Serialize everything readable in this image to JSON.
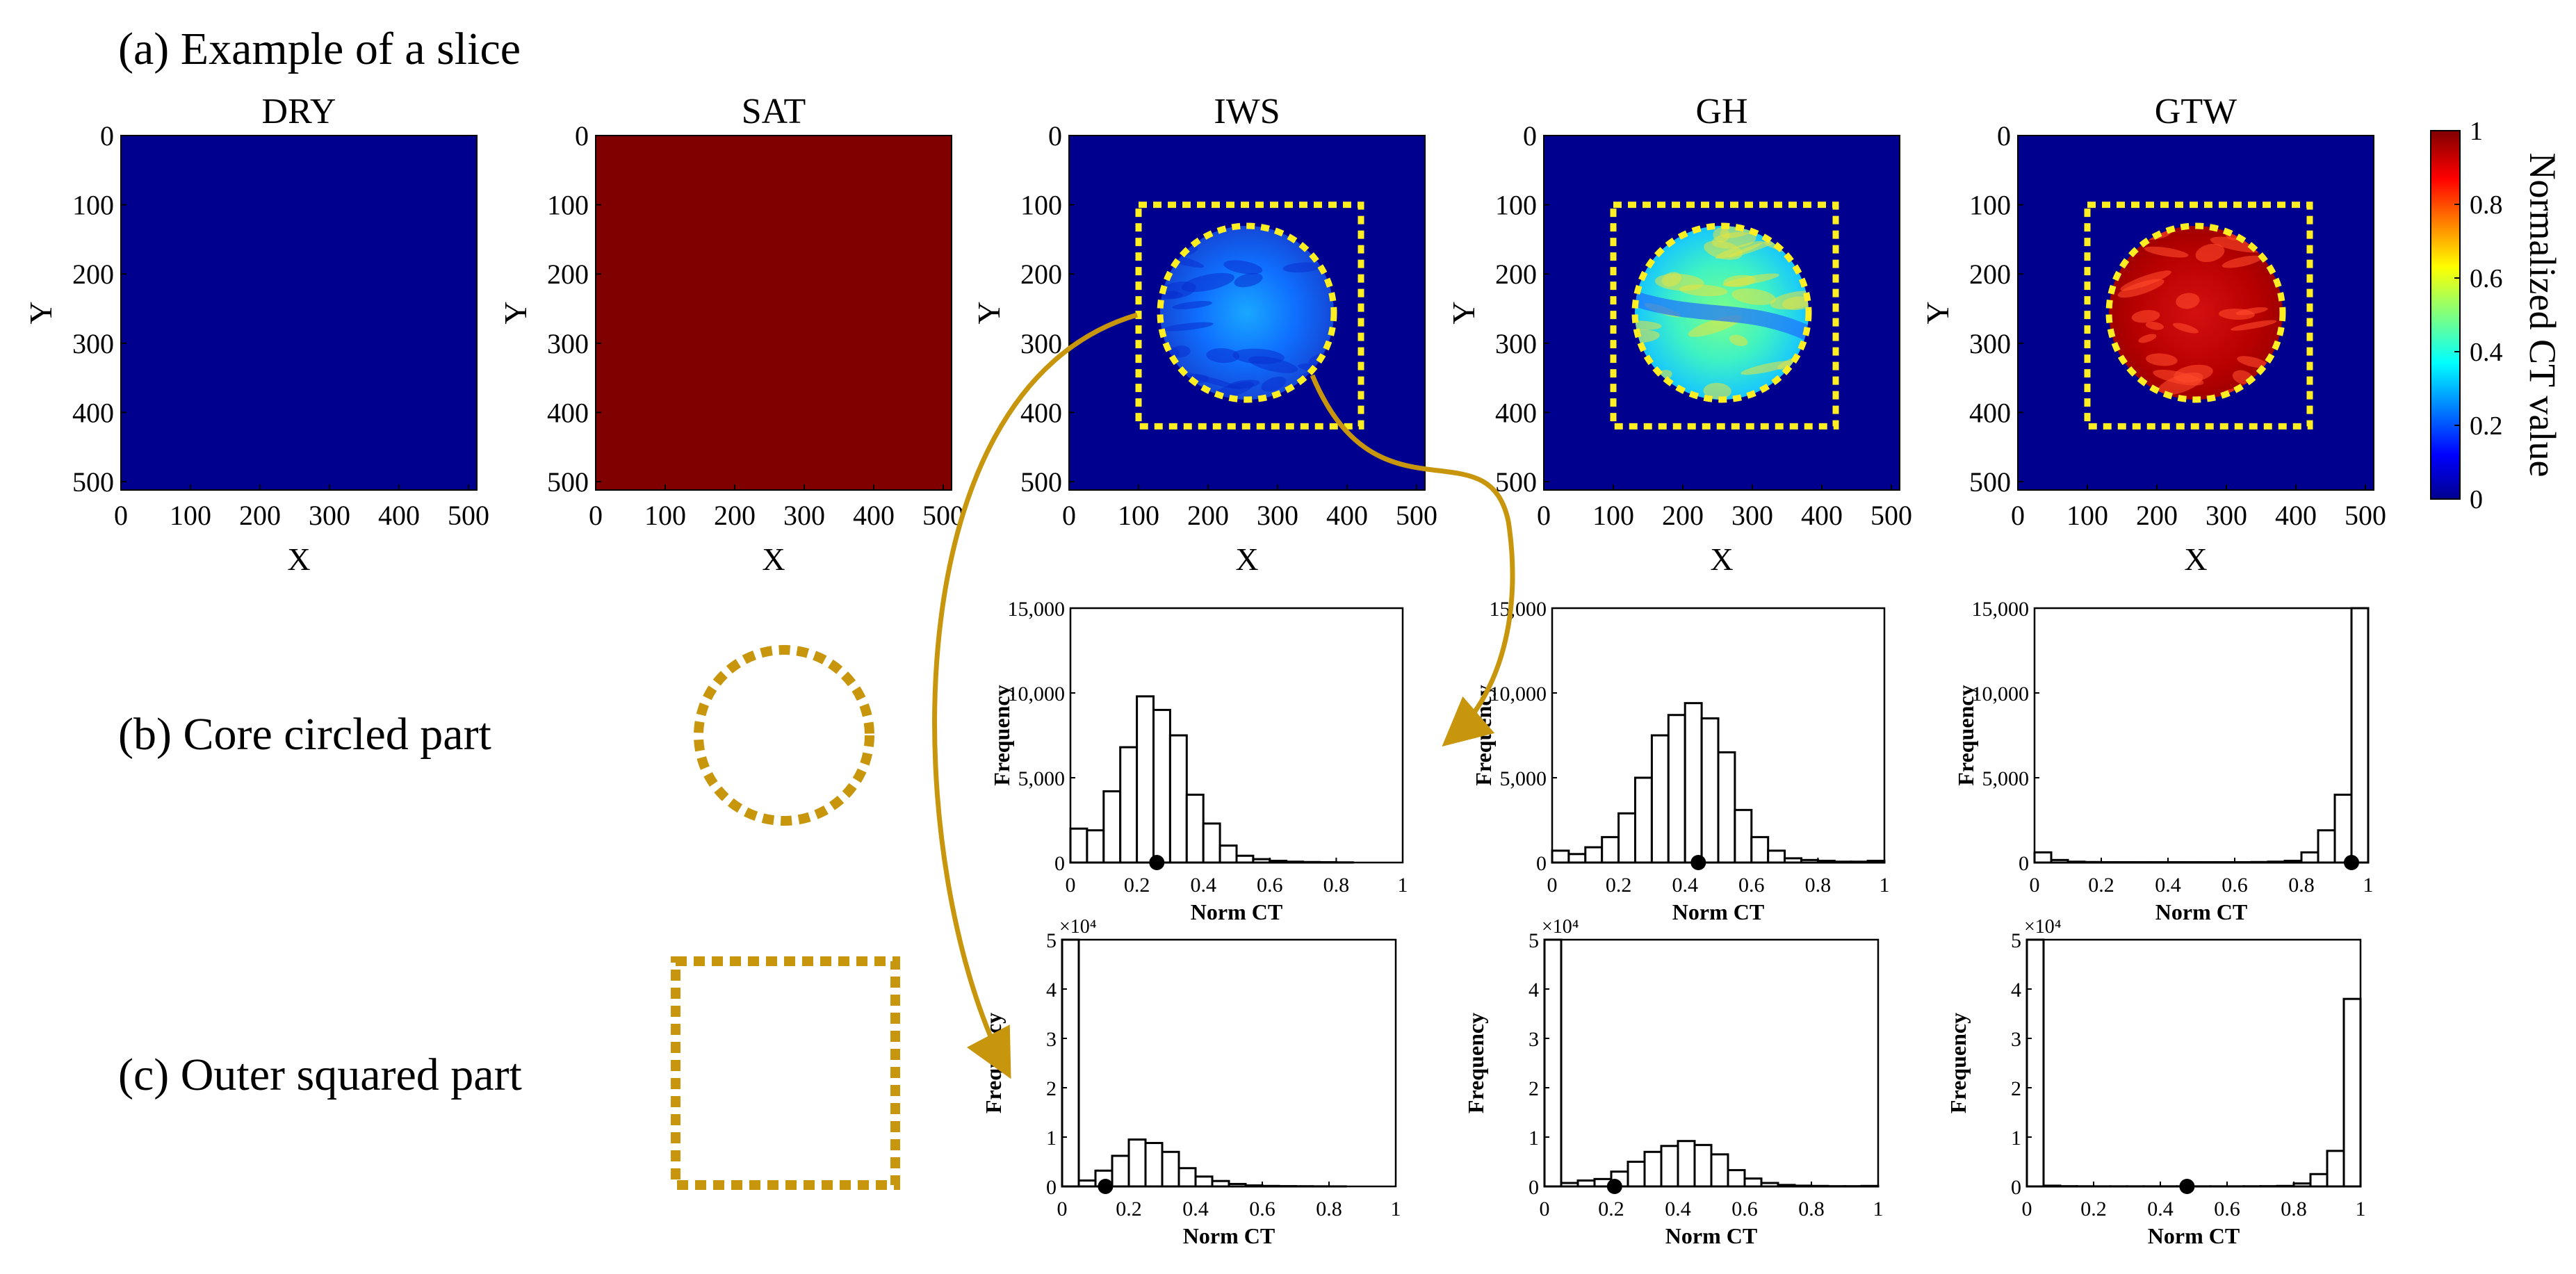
{
  "figure": {
    "row_a_label": "(a) Example of a slice",
    "row_b_label": "(b) Core circled part",
    "row_c_label": "(c) Outer squared part"
  },
  "colors": {
    "jet_dark_blue": "#00008f",
    "jet_dark_red": "#800000",
    "gold": "#c8960c",
    "yellow_dash": "#ffee22"
  },
  "slices": {
    "x_label": "X",
    "y_label": "Y",
    "ticks": [
      "0",
      "100",
      "200",
      "300",
      "400",
      "500"
    ],
    "tick_values": [
      0,
      100,
      200,
      300,
      400,
      500
    ],
    "axis_max": 512,
    "panels": [
      {
        "key": "dry",
        "title": "DRY",
        "fill": "uniform-low"
      },
      {
        "key": "sat",
        "title": "SAT",
        "fill": "uniform-high"
      },
      {
        "key": "iws",
        "title": "IWS",
        "fill": "core-low",
        "core_norm_ct": 0.26
      },
      {
        "key": "gh",
        "title": "GH",
        "fill": "core-mid",
        "core_norm_ct": 0.45
      },
      {
        "key": "gtw",
        "title": "GTW",
        "fill": "core-high",
        "core_norm_ct": 0.95
      }
    ],
    "core_circle": {
      "cx": 256,
      "cy": 256,
      "r": 125
    },
    "outer_square": {
      "x0": 100,
      "y0": 100,
      "x1": 420,
      "y1": 420
    }
  },
  "colorbar": {
    "label": "Normalized CT value",
    "ticks": [
      "0",
      "0.2",
      "0.4",
      "0.6",
      "0.8",
      "1"
    ],
    "tick_values": [
      0,
      0.2,
      0.4,
      0.6,
      0.8,
      1
    ]
  },
  "chart_data": [
    {
      "type": "bar",
      "title": "IWS core circled part",
      "xlabel": "Norm CT",
      "ylabel": "Frequency",
      "xlim": [
        0,
        1
      ],
      "ylim": [
        0,
        15000
      ],
      "bin_width": 0.05,
      "bin_starts": [
        0,
        0.05,
        0.1,
        0.15,
        0.2,
        0.25,
        0.3,
        0.35,
        0.4,
        0.45,
        0.5,
        0.55,
        0.6,
        0.65,
        0.7,
        0.75,
        0.8,
        0.85,
        0.9,
        0.95
      ],
      "values": [
        2000,
        1900,
        4200,
        6800,
        9800,
        9000,
        7500,
        4000,
        2300,
        1000,
        400,
        200,
        100,
        50,
        30,
        20,
        10,
        0,
        0,
        0
      ],
      "mean_marker": 0.26,
      "x_ticks": [
        "0",
        "0.2",
        "0.4",
        "0.6",
        "0.8",
        "1"
      ],
      "x_tick_values": [
        0,
        0.2,
        0.4,
        0.6,
        0.8,
        1
      ],
      "y_ticks": [
        "0",
        "5,000",
        "10,000",
        "15,000"
      ],
      "y_tick_values": [
        0,
        5000,
        10000,
        15000
      ],
      "exponent": ""
    },
    {
      "type": "bar",
      "title": "GH core circled part",
      "xlabel": "Norm CT",
      "ylabel": "Frequency",
      "xlim": [
        0,
        1
      ],
      "ylim": [
        0,
        15000
      ],
      "bin_width": 0.05,
      "bin_starts": [
        0,
        0.05,
        0.1,
        0.15,
        0.2,
        0.25,
        0.3,
        0.35,
        0.4,
        0.45,
        0.5,
        0.55,
        0.6,
        0.65,
        0.7,
        0.75,
        0.8,
        0.85,
        0.9,
        0.95
      ],
      "values": [
        700,
        500,
        900,
        1500,
        2900,
        5000,
        7500,
        8700,
        9400,
        8500,
        6500,
        3100,
        1500,
        700,
        250,
        150,
        100,
        50,
        50,
        100
      ],
      "mean_marker": 0.44,
      "x_ticks": [
        "0",
        "0.2",
        "0.4",
        "0.6",
        "0.8",
        "1"
      ],
      "x_tick_values": [
        0,
        0.2,
        0.4,
        0.6,
        0.8,
        1
      ],
      "y_ticks": [
        "0",
        "5,000",
        "10,000",
        "15,000"
      ],
      "y_tick_values": [
        0,
        5000,
        10000,
        15000
      ],
      "exponent": ""
    },
    {
      "type": "bar",
      "title": "GTW core circled part",
      "xlabel": "Norm CT",
      "ylabel": "Frequency",
      "xlim": [
        0,
        1
      ],
      "ylim": [
        0,
        15000
      ],
      "bin_width": 0.05,
      "bin_starts": [
        0,
        0.05,
        0.1,
        0.15,
        0.2,
        0.25,
        0.3,
        0.35,
        0.4,
        0.45,
        0.5,
        0.55,
        0.6,
        0.65,
        0.7,
        0.75,
        0.8,
        0.85,
        0.9,
        0.95
      ],
      "values": [
        600,
        150,
        50,
        30,
        20,
        20,
        20,
        20,
        20,
        20,
        20,
        20,
        20,
        30,
        50,
        100,
        600,
        1900,
        4000,
        6800
      ],
      "extra_bar": {
        "start": 0.95,
        "value": 15000
      },
      "mean_marker": 0.95,
      "x_ticks": [
        "0",
        "0.2",
        "0.4",
        "0.6",
        "0.8",
        "1"
      ],
      "x_tick_values": [
        0,
        0.2,
        0.4,
        0.6,
        0.8,
        1
      ],
      "y_ticks": [
        "0",
        "5,000",
        "10,000",
        "15,000"
      ],
      "y_tick_values": [
        0,
        5000,
        10000,
        15000
      ],
      "exponent": ""
    },
    {
      "type": "bar",
      "title": "IWS outer squared part",
      "xlabel": "Norm CT",
      "ylabel": "Frequency",
      "xlim": [
        0,
        1
      ],
      "ylim": [
        0,
        50000
      ],
      "bin_width": 0.05,
      "bin_starts": [
        0,
        0.05,
        0.1,
        0.15,
        0.2,
        0.25,
        0.3,
        0.35,
        0.4,
        0.45,
        0.5,
        0.55,
        0.6,
        0.65,
        0.7,
        0.75,
        0.8,
        0.85,
        0.9,
        0.95
      ],
      "values": [
        50000,
        1200,
        3200,
        6200,
        9500,
        8800,
        7000,
        3700,
        2000,
        1100,
        500,
        200,
        100,
        60,
        40,
        20,
        10,
        0,
        0,
        0
      ],
      "mean_marker": 0.13,
      "x_ticks": [
        "0",
        "0.2",
        "0.4",
        "0.6",
        "0.8",
        "1"
      ],
      "x_tick_values": [
        0,
        0.2,
        0.4,
        0.6,
        0.8,
        1
      ],
      "y_ticks": [
        "0",
        "1",
        "2",
        "3",
        "4",
        "5"
      ],
      "y_tick_values": [
        0,
        10000,
        20000,
        30000,
        40000,
        50000
      ],
      "exponent": "×10⁴"
    },
    {
      "type": "bar",
      "title": "GH outer squared part",
      "xlabel": "Norm CT",
      "ylabel": "Frequency",
      "xlim": [
        0,
        1
      ],
      "ylim": [
        0,
        50000
      ],
      "bin_width": 0.05,
      "bin_starts": [
        0,
        0.05,
        0.1,
        0.15,
        0.2,
        0.25,
        0.3,
        0.35,
        0.4,
        0.45,
        0.5,
        0.55,
        0.6,
        0.65,
        0.7,
        0.75,
        0.8,
        0.85,
        0.9,
        0.95
      ],
      "values": [
        50000,
        700,
        1200,
        1500,
        3000,
        5000,
        7000,
        8200,
        9200,
        8400,
        6500,
        3300,
        1600,
        700,
        300,
        150,
        100,
        50,
        50,
        100
      ],
      "mean_marker": 0.21,
      "x_ticks": [
        "0",
        "0.2",
        "0.4",
        "0.6",
        "0.8",
        "1"
      ],
      "x_tick_values": [
        0,
        0.2,
        0.4,
        0.6,
        0.8,
        1
      ],
      "y_ticks": [
        "0",
        "1",
        "2",
        "3",
        "4",
        "5"
      ],
      "y_tick_values": [
        0,
        10000,
        20000,
        30000,
        40000,
        50000
      ],
      "exponent": "×10⁴"
    },
    {
      "type": "bar",
      "title": "GTW outer squared part",
      "xlabel": "Norm CT",
      "ylabel": "Frequency",
      "xlim": [
        0,
        1
      ],
      "ylim": [
        0,
        50000
      ],
      "bin_width": 0.05,
      "bin_starts": [
        0,
        0.05,
        0.1,
        0.15,
        0.2,
        0.25,
        0.3,
        0.35,
        0.4,
        0.45,
        0.5,
        0.55,
        0.6,
        0.65,
        0.7,
        0.75,
        0.8,
        0.85,
        0.9,
        0.95
      ],
      "values": [
        50000,
        150,
        50,
        30,
        20,
        20,
        20,
        20,
        20,
        20,
        20,
        20,
        20,
        30,
        50,
        100,
        600,
        2500,
        7200,
        38000
      ],
      "mean_marker": 0.48,
      "x_ticks": [
        "0",
        "0.2",
        "0.4",
        "0.6",
        "0.8",
        "1"
      ],
      "x_tick_values": [
        0,
        0.2,
        0.4,
        0.6,
        0.8,
        1
      ],
      "y_ticks": [
        "0",
        "1",
        "2",
        "3",
        "4",
        "5"
      ],
      "y_tick_values": [
        0,
        10000,
        20000,
        30000,
        40000,
        50000
      ],
      "exponent": "×10⁴"
    }
  ]
}
